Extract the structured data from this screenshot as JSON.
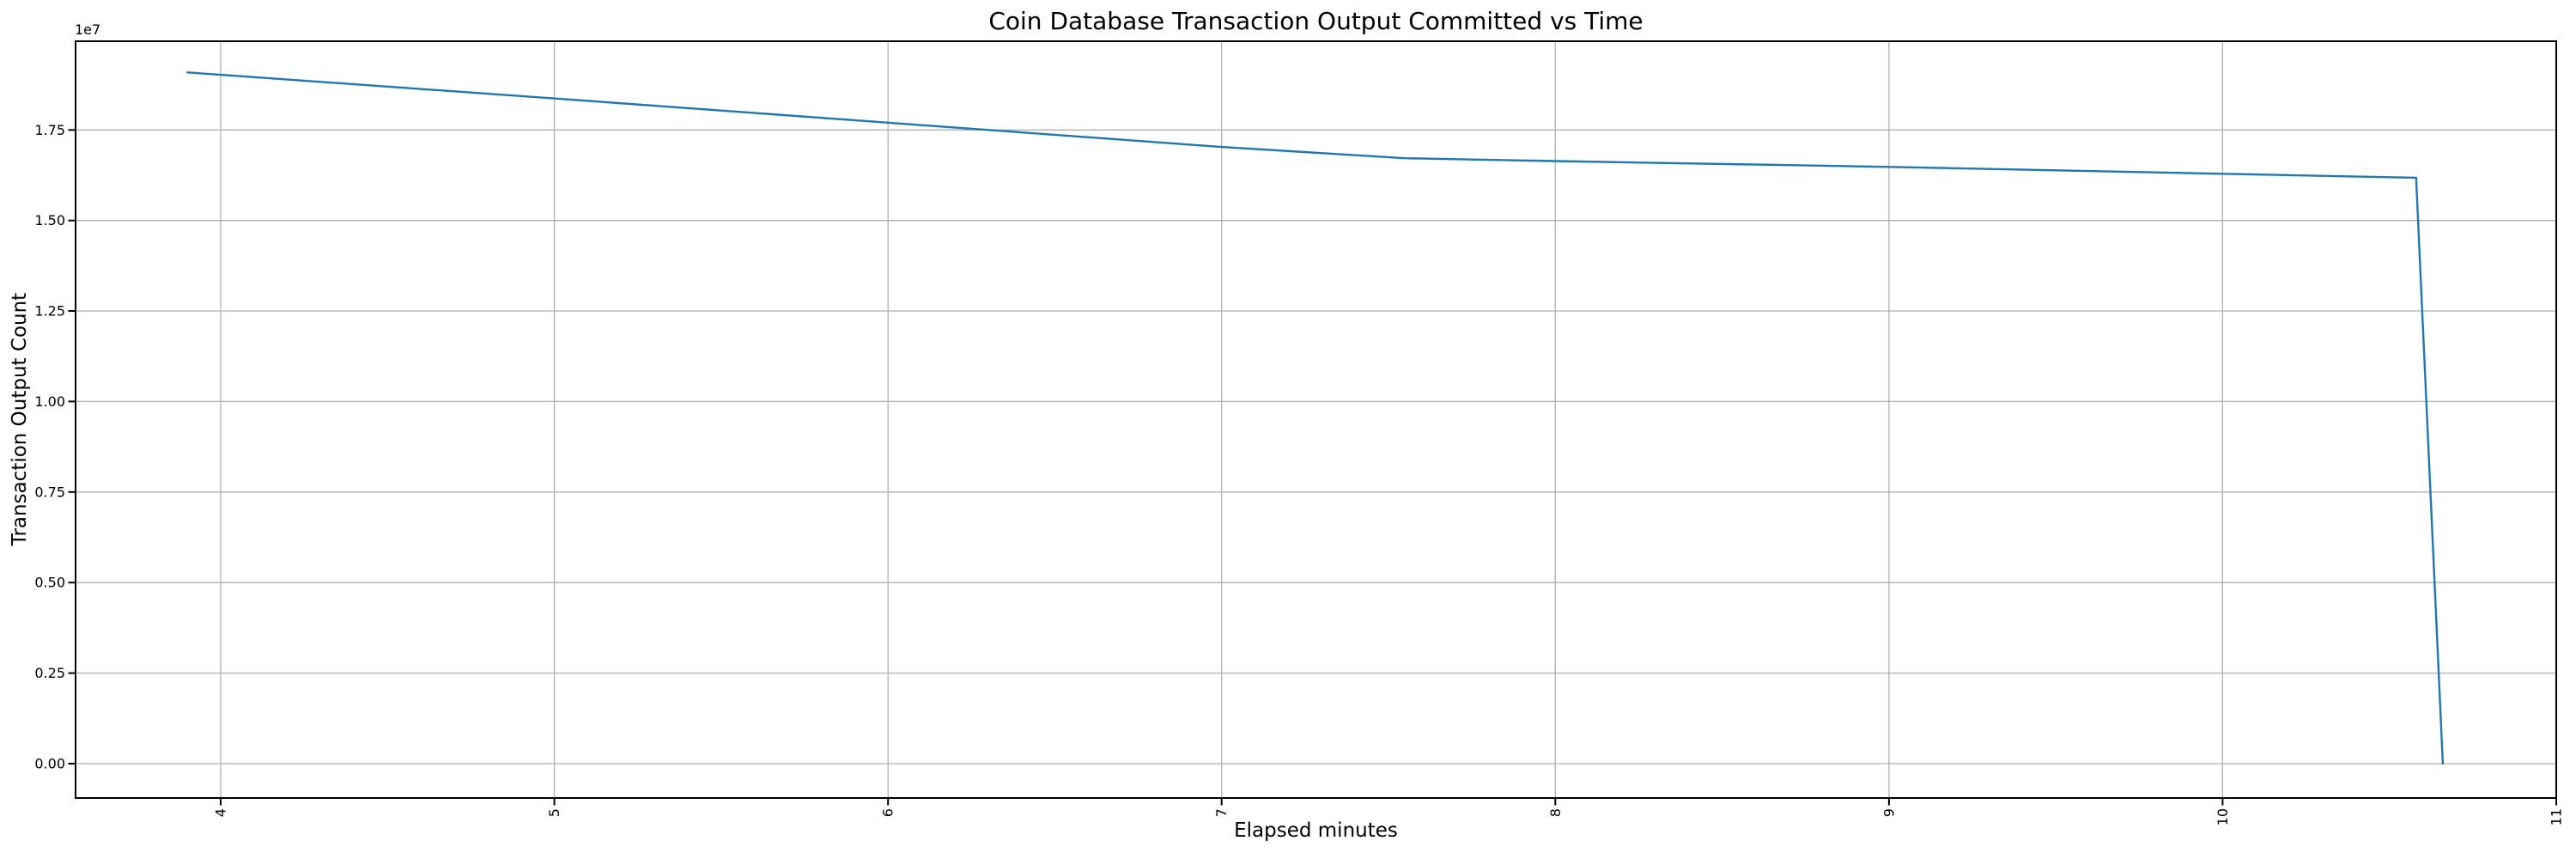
{
  "figure": {
    "background_color": "#ffffff"
  },
  "chart_data": {
    "type": "line",
    "title": "Coin Database Transaction Output Committed vs Time",
    "xlabel": "Elapsed minutes",
    "ylabel": "Transaction Output Count",
    "y_axis_offset_label": "1e7",
    "grid": true,
    "legend": false,
    "xlim": [
      3.565,
      11.0
    ],
    "ylim": [
      -950000,
      19950000
    ],
    "xticks": [
      4,
      5,
      6,
      7,
      8,
      9,
      10,
      11
    ],
    "xtick_labels": [
      "4",
      "5",
      "6",
      "7",
      "8",
      "9",
      "10",
      "11"
    ],
    "xtick_rotation_deg": 90,
    "yticks": [
      0,
      2500000,
      5000000,
      7500000,
      10000000,
      12500000,
      15000000,
      17500000
    ],
    "ytick_labels": [
      "0.00",
      "0.25",
      "0.50",
      "0.75",
      "1.00",
      "1.25",
      "1.50",
      "1.75"
    ],
    "colors": {
      "line": "#1f77b4",
      "grid": "#b0b0b0",
      "axis": "#000000",
      "text": "#000000",
      "background": "#ffffff"
    },
    "series": [
      {
        "name": "transaction_output_committed",
        "color": "#1f77b4",
        "points": [
          [
            3.9,
            19090000
          ],
          [
            5.0,
            18370000
          ],
          [
            6.0,
            17700000
          ],
          [
            7.0,
            17030000
          ],
          [
            7.55,
            16720000
          ],
          [
            8.0,
            16640000
          ],
          [
            9.0,
            16480000
          ],
          [
            10.0,
            16290000
          ],
          [
            10.58,
            16180000
          ],
          [
            10.66,
            0
          ]
        ]
      }
    ]
  }
}
